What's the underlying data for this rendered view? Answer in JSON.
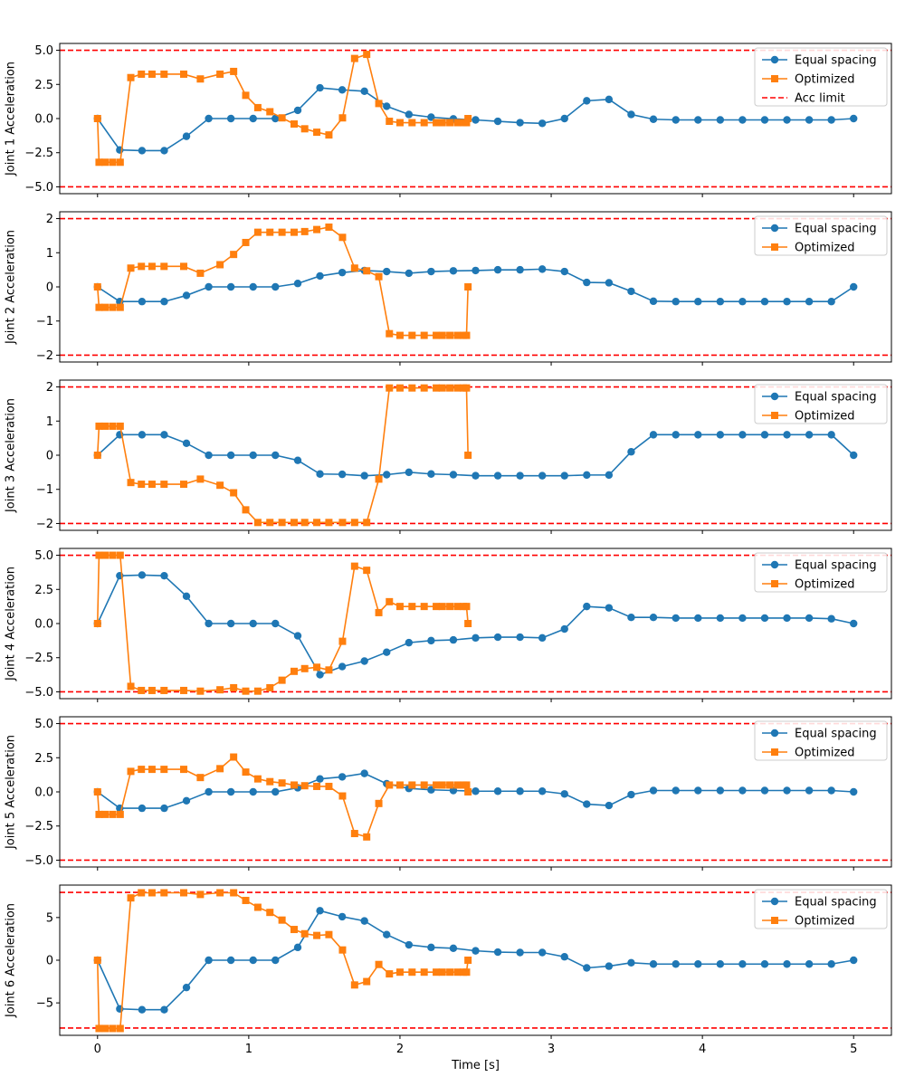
{
  "colors": {
    "equal": "#1f77b4",
    "optimized": "#ff7f0e",
    "limit": "#ff0000"
  },
  "chart_data": {
    "type": "line",
    "layout": "6 vertically stacked subplots sharing x axis",
    "xlabel": "Time [s]",
    "xlim": [
      -0.25,
      5.25
    ],
    "xticks": [
      0,
      1,
      2,
      3,
      4,
      5
    ],
    "xtick_labels": [
      "0",
      "1",
      "2",
      "3",
      "4",
      "5"
    ],
    "legend_placement": "top-right",
    "grid": false,
    "series_definitions": [
      {
        "key": "equal",
        "name": "Equal spacing",
        "marker": "circle",
        "color": "#1f77b4"
      },
      {
        "key": "optimized",
        "name": "Optimized",
        "marker": "square",
        "color": "#ff7f0e"
      }
    ],
    "limit_line": {
      "name": "Acc limit",
      "style": "dashed",
      "color": "#ff0000",
      "shown_in_legend_of": [
        0
      ]
    },
    "equal_x": [
      0,
      0.147,
      0.294,
      0.441,
      0.588,
      0.735,
      0.882,
      1.029,
      1.176,
      1.324,
      1.471,
      1.618,
      1.765,
      1.912,
      2.059,
      2.206,
      2.353,
      2.5,
      2.647,
      2.794,
      2.941,
      3.088,
      3.235,
      3.382,
      3.529,
      3.676,
      3.824,
      3.971,
      4.118,
      4.265,
      4.412,
      4.559,
      4.706,
      4.853,
      5.0
    ],
    "optimized_x": [
      0,
      0.01,
      0.05,
      0.1,
      0.15,
      0.22,
      0.29,
      0.36,
      0.44,
      0.57,
      0.68,
      0.81,
      0.9,
      0.98,
      1.06,
      1.14,
      1.22,
      1.3,
      1.37,
      1.45,
      1.53,
      1.62,
      1.7,
      1.78,
      1.86,
      1.93,
      2.0,
      2.08,
      2.16,
      2.24,
      2.28,
      2.33,
      2.38,
      2.42,
      2.44,
      2.45
    ],
    "subplots": [
      {
        "ylabel": "Joint 1 Acceleration",
        "ylim": [
          -5.5,
          5.5
        ],
        "yticks": [
          -5.0,
          -2.5,
          0.0,
          2.5,
          5.0
        ],
        "ytick_labels": [
          "−5.0",
          "−2.5",
          "0.0",
          "2.5",
          "5.0"
        ],
        "limit": 5,
        "equal_y": [
          0,
          -2.3,
          -2.35,
          -2.35,
          -1.3,
          0,
          0,
          0,
          0,
          0.6,
          2.25,
          2.1,
          2.0,
          0.9,
          0.3,
          0.1,
          -0.02,
          -0.1,
          -0.2,
          -0.3,
          -0.35,
          0,
          1.3,
          1.4,
          0.3,
          -0.05,
          -0.1,
          -0.1,
          -0.1,
          -0.1,
          -0.1,
          -0.1,
          -0.1,
          -0.1,
          0
        ],
        "optimized_y": [
          0,
          -3.2,
          -3.2,
          -3.2,
          -3.2,
          3.0,
          3.25,
          3.25,
          3.25,
          3.25,
          2.9,
          3.25,
          3.45,
          1.7,
          0.8,
          0.5,
          0.05,
          -0.4,
          -0.75,
          -1.0,
          -1.2,
          0.05,
          4.4,
          4.7,
          1.1,
          -0.2,
          -0.3,
          -0.3,
          -0.3,
          -0.3,
          -0.3,
          -0.3,
          -0.3,
          -0.3,
          -0.3,
          0
        ]
      },
      {
        "ylabel": "Joint 2 Acceleration",
        "ylim": [
          -2.2,
          2.2
        ],
        "yticks": [
          -2,
          -1,
          0,
          1,
          2
        ],
        "ytick_labels": [
          "−2",
          "−1",
          "0",
          "1",
          "2"
        ],
        "limit": 2,
        "equal_y": [
          0,
          -0.43,
          -0.43,
          -0.43,
          -0.25,
          0,
          0,
          0,
          0,
          0.1,
          0.32,
          0.42,
          0.48,
          0.45,
          0.4,
          0.45,
          0.47,
          0.48,
          0.5,
          0.5,
          0.52,
          0.45,
          0.13,
          0.12,
          -0.13,
          -0.42,
          -0.43,
          -0.43,
          -0.43,
          -0.43,
          -0.43,
          -0.43,
          -0.43,
          -0.43,
          0
        ],
        "optimized_y": [
          0,
          -0.6,
          -0.6,
          -0.6,
          -0.6,
          0.55,
          0.6,
          0.6,
          0.6,
          0.6,
          0.4,
          0.65,
          0.95,
          1.3,
          1.6,
          1.6,
          1.6,
          1.6,
          1.62,
          1.68,
          1.75,
          1.45,
          0.55,
          0.47,
          0.3,
          -1.37,
          -1.42,
          -1.42,
          -1.42,
          -1.42,
          -1.42,
          -1.42,
          -1.42,
          -1.42,
          -1.42,
          0
        ]
      },
      {
        "ylabel": "Joint 3 Acceleration",
        "ylim": [
          -2.2,
          2.2
        ],
        "yticks": [
          -2,
          -1,
          0,
          1,
          2
        ],
        "ytick_labels": [
          "−2",
          "−1",
          "0",
          "1",
          "2"
        ],
        "limit": 2,
        "equal_y": [
          0,
          0.6,
          0.6,
          0.6,
          0.35,
          0,
          0,
          0,
          0,
          -0.15,
          -0.55,
          -0.56,
          -0.6,
          -0.57,
          -0.5,
          -0.55,
          -0.57,
          -0.6,
          -0.6,
          -0.6,
          -0.6,
          -0.6,
          -0.58,
          -0.58,
          0.1,
          0.6,
          0.6,
          0.6,
          0.6,
          0.6,
          0.6,
          0.6,
          0.6,
          0.6,
          0
        ],
        "optimized_y": [
          0,
          0.85,
          0.85,
          0.85,
          0.85,
          -0.8,
          -0.85,
          -0.85,
          -0.85,
          -0.85,
          -0.7,
          -0.88,
          -1.1,
          -1.6,
          -1.97,
          -1.97,
          -1.97,
          -1.97,
          -1.97,
          -1.97,
          -1.97,
          -1.97,
          -1.97,
          -1.97,
          -0.7,
          1.97,
          1.97,
          1.97,
          1.97,
          1.97,
          1.97,
          1.97,
          1.97,
          1.97,
          1.97,
          0
        ]
      },
      {
        "ylabel": "Joint 4 Acceleration",
        "ylim": [
          -5.5,
          5.5
        ],
        "yticks": [
          -5.0,
          -2.5,
          0.0,
          2.5,
          5.0
        ],
        "ytick_labels": [
          "−5.0",
          "−2.5",
          "0.0",
          "2.5",
          "5.0"
        ],
        "limit": 5,
        "equal_y": [
          0,
          3.5,
          3.55,
          3.5,
          2.0,
          0,
          0,
          0,
          0,
          -0.9,
          -3.75,
          -3.15,
          -2.75,
          -2.1,
          -1.4,
          -1.25,
          -1.2,
          -1.05,
          -1.0,
          -1.0,
          -1.05,
          -0.4,
          1.25,
          1.15,
          0.45,
          0.45,
          0.4,
          0.4,
          0.4,
          0.4,
          0.4,
          0.4,
          0.4,
          0.35,
          0
        ],
        "optimized_y": [
          0,
          5.0,
          5.0,
          5.0,
          5.0,
          -4.6,
          -4.9,
          -4.9,
          -4.9,
          -4.9,
          -4.95,
          -4.85,
          -4.7,
          -4.95,
          -4.95,
          -4.7,
          -4.15,
          -3.5,
          -3.3,
          -3.2,
          -3.4,
          -1.3,
          4.2,
          3.9,
          0.8,
          1.6,
          1.25,
          1.25,
          1.25,
          1.25,
          1.25,
          1.25,
          1.25,
          1.25,
          1.25,
          0
        ]
      },
      {
        "ylabel": "Joint 5 Acceleration",
        "ylim": [
          -5.5,
          5.5
        ],
        "yticks": [
          -5.0,
          -2.5,
          0.0,
          2.5,
          5.0
        ],
        "ytick_labels": [
          "−5.0",
          "−2.5",
          "0.0",
          "2.5",
          "5.0"
        ],
        "limit": 5,
        "equal_y": [
          0,
          -1.2,
          -1.2,
          -1.2,
          -0.65,
          0,
          0,
          0,
          0,
          0.3,
          0.95,
          1.1,
          1.35,
          0.6,
          0.25,
          0.15,
          0.1,
          0.05,
          0.05,
          0.05,
          0.05,
          -0.15,
          -0.9,
          -1.0,
          -0.2,
          0.1,
          0.1,
          0.1,
          0.1,
          0.1,
          0.1,
          0.1,
          0.1,
          0.1,
          0
        ],
        "optimized_y": [
          0,
          -1.65,
          -1.65,
          -1.65,
          -1.65,
          1.5,
          1.65,
          1.65,
          1.65,
          1.65,
          1.05,
          1.7,
          2.55,
          1.45,
          0.95,
          0.75,
          0.65,
          0.5,
          0.45,
          0.4,
          0.4,
          -0.3,
          -3.05,
          -3.3,
          -0.85,
          0.5,
          0.5,
          0.5,
          0.5,
          0.5,
          0.5,
          0.5,
          0.5,
          0.5,
          0.5,
          0
        ]
      },
      {
        "ylabel": "Joint 6 Acceleration",
        "ylim": [
          -8.8,
          8.8
        ],
        "yticks": [
          -5,
          0,
          5
        ],
        "ytick_labels": [
          "−5",
          "0",
          "5"
        ],
        "limit": 7.95,
        "equal_y": [
          0,
          -5.7,
          -5.8,
          -5.8,
          -3.2,
          0,
          0,
          0,
          0,
          1.5,
          5.8,
          5.1,
          4.6,
          3.0,
          1.8,
          1.5,
          1.4,
          1.1,
          0.95,
          0.9,
          0.9,
          0.4,
          -0.9,
          -0.7,
          -0.3,
          -0.45,
          -0.45,
          -0.45,
          -0.45,
          -0.45,
          -0.45,
          -0.45,
          -0.45,
          -0.45,
          0
        ],
        "optimized_y": [
          0,
          -8.0,
          -8.0,
          -8.0,
          -8.0,
          7.3,
          7.9,
          7.9,
          7.9,
          7.9,
          7.7,
          7.9,
          7.9,
          7.0,
          6.2,
          5.6,
          4.7,
          3.6,
          3.1,
          2.9,
          3.0,
          1.2,
          -2.9,
          -2.5,
          -0.5,
          -1.6,
          -1.4,
          -1.4,
          -1.4,
          -1.4,
          -1.4,
          -1.4,
          -1.4,
          -1.4,
          -1.4,
          0
        ]
      }
    ]
  }
}
